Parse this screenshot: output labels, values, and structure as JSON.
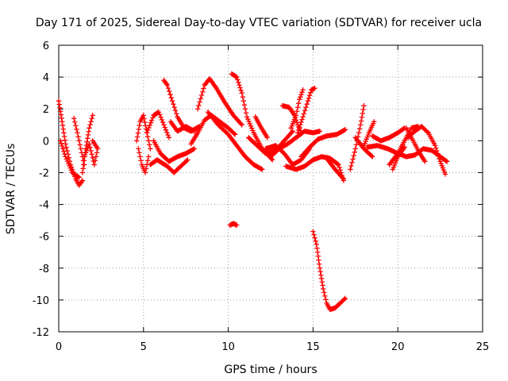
{
  "chart_data": {
    "type": "scatter",
    "title": "Day 171 of 2025, Sidereal Day-to-day VTEC variation (SDTVAR) for receiver ucla",
    "xlabel": "GPS time / hours",
    "ylabel": "SDTVAR / TECUs",
    "xlim": [
      0,
      25
    ],
    "ylim": [
      -12,
      6
    ],
    "xticks": [
      0,
      5,
      10,
      15,
      20,
      25
    ],
    "yticks": [
      -12,
      -10,
      -8,
      -6,
      -4,
      -2,
      0,
      2,
      4,
      6
    ],
    "grid": true,
    "marker": "+",
    "color": "#ff0000",
    "tracks": [
      [
        [
          0.0,
          2.5
        ],
        [
          0.2,
          1.2
        ],
        [
          0.4,
          -0.2
        ],
        [
          0.7,
          -1.5
        ],
        [
          1.0,
          -2.4
        ],
        [
          1.2,
          -2.8
        ],
        [
          1.4,
          -2.5
        ]
      ],
      [
        [
          0.1,
          0.0
        ],
        [
          0.4,
          -1.0
        ],
        [
          0.8,
          -2.0
        ],
        [
          1.2,
          -2.3
        ]
      ],
      [
        [
          0.9,
          1.4
        ],
        [
          1.1,
          0.5
        ],
        [
          1.3,
          -0.5
        ],
        [
          1.5,
          -1.5
        ]
      ],
      [
        [
          1.4,
          -2.0
        ],
        [
          1.6,
          -0.5
        ],
        [
          1.8,
          0.8
        ],
        [
          2.0,
          1.6
        ]
      ],
      [
        [
          1.5,
          -1.0
        ],
        [
          1.8,
          -0.2
        ],
        [
          2.1,
          -1.5
        ],
        [
          2.3,
          -0.5
        ],
        [
          2.0,
          0.0
        ]
      ],
      [
        [
          4.6,
          0.0
        ],
        [
          4.8,
          1.2
        ],
        [
          5.0,
          1.6
        ],
        [
          5.2,
          0.5
        ],
        [
          5.4,
          -0.5
        ]
      ],
      [
        [
          4.7,
          -0.5
        ],
        [
          4.9,
          -1.5
        ],
        [
          5.1,
          -2.0
        ],
        [
          5.3,
          -1.0
        ]
      ],
      [
        [
          5.2,
          0.5
        ],
        [
          5.6,
          1.6
        ],
        [
          5.9,
          1.8
        ],
        [
          6.2,
          1.0
        ],
        [
          6.5,
          0.2
        ]
      ],
      [
        [
          5.6,
          0.0
        ],
        [
          6.0,
          -0.8
        ],
        [
          6.5,
          -1.3
        ],
        [
          7.0,
          -1.0
        ],
        [
          7.5,
          -0.8
        ],
        [
          8.0,
          -0.5
        ]
      ],
      [
        [
          5.4,
          -1.5
        ],
        [
          5.8,
          -1.2
        ],
        [
          6.4,
          -1.6
        ],
        [
          6.8,
          -2.0
        ],
        [
          7.2,
          -1.6
        ],
        [
          7.6,
          -1.2
        ]
      ],
      [
        [
          6.2,
          3.8
        ],
        [
          6.4,
          3.5
        ],
        [
          6.7,
          2.5
        ],
        [
          7.0,
          1.5
        ],
        [
          7.4,
          0.8
        ],
        [
          7.8,
          0.6
        ],
        [
          8.3,
          0.9
        ]
      ],
      [
        [
          6.6,
          1.2
        ],
        [
          7.0,
          0.6
        ],
        [
          7.5,
          0.9
        ],
        [
          8.0,
          0.6
        ]
      ],
      [
        [
          7.8,
          -0.2
        ],
        [
          8.2,
          0.5
        ],
        [
          8.6,
          1.3
        ],
        [
          9.0,
          1.6
        ],
        [
          9.5,
          1.2
        ],
        [
          10.0,
          0.8
        ],
        [
          10.4,
          0.4
        ]
      ],
      [
        [
          8.2,
          2.0
        ],
        [
          8.6,
          3.5
        ],
        [
          8.9,
          3.9
        ],
        [
          9.3,
          3.3
        ],
        [
          9.8,
          2.4
        ],
        [
          10.3,
          1.6
        ],
        [
          10.8,
          1.0
        ]
      ],
      [
        [
          8.8,
          1.8
        ],
        [
          9.4,
          1.0
        ],
        [
          10.0,
          0.4
        ],
        [
          10.5,
          -0.3
        ],
        [
          11.0,
          -1.0
        ],
        [
          11.5,
          -1.5
        ],
        [
          12.0,
          -1.8
        ]
      ],
      [
        [
          10.2,
          4.2
        ],
        [
          10.5,
          4.0
        ],
        [
          10.8,
          3.0
        ],
        [
          11.1,
          1.5
        ],
        [
          11.5,
          0.5
        ],
        [
          12.0,
          -0.5
        ],
        [
          12.6,
          -1.2
        ]
      ],
      [
        [
          10.1,
          -5.3
        ],
        [
          10.3,
          -5.2
        ],
        [
          10.5,
          -5.3
        ]
      ],
      [
        [
          11.2,
          0.2
        ],
        [
          11.7,
          -0.3
        ],
        [
          12.2,
          -0.8
        ],
        [
          12.8,
          -0.6
        ],
        [
          13.3,
          0.0
        ],
        [
          13.8,
          0.6
        ]
      ],
      [
        [
          11.6,
          1.5
        ],
        [
          11.9,
          0.9
        ],
        [
          12.3,
          0.2
        ]
      ],
      [
        [
          12.5,
          -1.0
        ],
        [
          13.0,
          -0.5
        ],
        [
          13.5,
          -0.2
        ],
        [
          14.0,
          0.2
        ],
        [
          14.5,
          0.6
        ],
        [
          15.0,
          0.5
        ],
        [
          15.4,
          0.6
        ]
      ],
      [
        [
          12.2,
          -0.5
        ],
        [
          12.8,
          -0.3
        ],
        [
          13.3,
          -0.8
        ],
        [
          13.8,
          -1.5
        ],
        [
          14.3,
          -1.2
        ],
        [
          14.8,
          -0.5
        ]
      ],
      [
        [
          13.2,
          2.2
        ],
        [
          13.6,
          2.1
        ],
        [
          13.9,
          1.6
        ],
        [
          14.1,
          1.0
        ],
        [
          14.3,
          0.5
        ]
      ],
      [
        [
          13.7,
          0.8
        ],
        [
          14.0,
          1.6
        ],
        [
          14.2,
          2.6
        ],
        [
          14.4,
          3.2
        ]
      ],
      [
        [
          14.1,
          0.5
        ],
        [
          14.4,
          1.5
        ],
        [
          14.7,
          2.5
        ],
        [
          14.9,
          3.2
        ],
        [
          15.1,
          3.3
        ]
      ],
      [
        [
          13.4,
          -1.6
        ],
        [
          14.0,
          -1.8
        ],
        [
          14.5,
          -1.6
        ],
        [
          15.0,
          -1.2
        ],
        [
          15.5,
          -1.0
        ],
        [
          16.0,
          -1.1
        ],
        [
          16.5,
          -1.5
        ],
        [
          16.8,
          -2.5
        ]
      ],
      [
        [
          14.3,
          -1.0
        ],
        [
          14.8,
          -0.4
        ],
        [
          15.3,
          0.1
        ],
        [
          15.8,
          0.3
        ],
        [
          16.4,
          0.4
        ],
        [
          16.9,
          0.7
        ]
      ],
      [
        [
          15.8,
          -1.1
        ],
        [
          16.3,
          -1.8
        ],
        [
          16.8,
          -2.4
        ]
      ],
      [
        [
          15.0,
          -5.7
        ],
        [
          15.2,
          -6.5
        ],
        [
          15.4,
          -8.0
        ],
        [
          15.6,
          -9.3
        ],
        [
          15.8,
          -10.2
        ],
        [
          16.0,
          -10.6
        ],
        [
          16.3,
          -10.5
        ],
        [
          16.6,
          -10.2
        ],
        [
          16.9,
          -9.9
        ]
      ],
      [
        [
          17.2,
          -1.8
        ],
        [
          17.5,
          -0.5
        ],
        [
          17.8,
          1.0
        ],
        [
          18.0,
          2.2
        ]
      ],
      [
        [
          17.5,
          0.2
        ],
        [
          18.0,
          -0.5
        ],
        [
          18.5,
          -1.0
        ]
      ],
      [
        [
          18.0,
          -0.3
        ],
        [
          18.3,
          0.5
        ],
        [
          18.6,
          1.2
        ]
      ],
      [
        [
          18.2,
          -0.4
        ],
        [
          18.8,
          -0.3
        ],
        [
          19.4,
          -0.5
        ],
        [
          20.0,
          -0.8
        ],
        [
          20.5,
          -1.0
        ],
        [
          21.0,
          -0.9
        ],
        [
          21.5,
          -0.5
        ],
        [
          22.0,
          -0.6
        ],
        [
          22.5,
          -1.0
        ],
        [
          22.9,
          -1.3
        ]
      ],
      [
        [
          18.5,
          0.3
        ],
        [
          19.0,
          0.0
        ],
        [
          19.5,
          0.2
        ],
        [
          20.0,
          0.5
        ],
        [
          20.4,
          0.8
        ]
      ],
      [
        [
          19.5,
          -1.5
        ],
        [
          20.0,
          -0.8
        ],
        [
          20.4,
          0.0
        ],
        [
          20.8,
          0.8
        ],
        [
          21.2,
          0.9
        ]
      ],
      [
        [
          20.5,
          0.8
        ],
        [
          20.9,
          0.0
        ],
        [
          21.3,
          -0.8
        ],
        [
          21.6,
          -1.3
        ]
      ],
      [
        [
          20.6,
          0.2
        ],
        [
          21.0,
          0.6
        ],
        [
          21.4,
          0.9
        ],
        [
          21.8,
          0.5
        ],
        [
          22.2,
          -0.3
        ],
        [
          22.5,
          -1.3
        ],
        [
          22.8,
          -2.1
        ]
      ],
      [
        [
          19.7,
          -1.8
        ],
        [
          20.0,
          -1.0
        ],
        [
          20.4,
          -0.4
        ]
      ]
    ]
  }
}
